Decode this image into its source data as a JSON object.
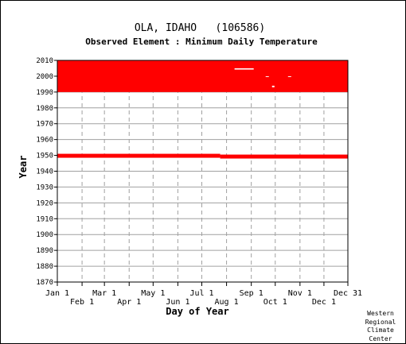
{
  "chart_data": {
    "type": "heatmap",
    "title": "OLA, IDAHO   (106586)",
    "subtitle": "Observed Element : Minimum Daily Temperature",
    "xlabel": "Day of Year",
    "ylabel": "Year",
    "xlim": [
      1,
      365
    ],
    "ylim": [
      1870,
      2010
    ],
    "y_ticks": [
      "2010",
      "2000",
      "1990",
      "1980",
      "1970",
      "1960",
      "1950",
      "1940",
      "1930",
      "1920",
      "1910",
      "1900",
      "1890",
      "1880",
      "1870"
    ],
    "x_ticks_top": [
      {
        "label": "Jan 1",
        "day": 1
      },
      {
        "label": "Mar 1",
        "day": 60
      },
      {
        "label": "May 1",
        "day": 121
      },
      {
        "label": "Jul 1",
        "day": 182
      },
      {
        "label": "Sep 1",
        "day": 244
      },
      {
        "label": "Nov 1",
        "day": 305
      },
      {
        "label": "Dec 31",
        "day": 365
      }
    ],
    "x_ticks_bottom": [
      {
        "label": "Feb 1",
        "day": 32
      },
      {
        "label": "Apr 1",
        "day": 91
      },
      {
        "label": "Jun 1",
        "day": 152
      },
      {
        "label": "Aug 1",
        "day": 213
      },
      {
        "label": "Oct 1",
        "day": 274
      },
      {
        "label": "Dec 1",
        "day": 335
      }
    ],
    "grid": true,
    "data_color": "#ff0000",
    "observed_periods": [
      {
        "start_year": 1990,
        "end_year": 2010,
        "start_day": 1,
        "end_day": 365
      },
      {
        "start_year": 1948.5,
        "end_year": 1951,
        "start_day": 1,
        "end_day": 205
      },
      {
        "start_year": 1948,
        "end_year": 1950.5,
        "start_day": 205,
        "end_day": 365
      }
    ],
    "missing": [
      {
        "start_year": 2004.2,
        "end_year": 2005,
        "start_day": 223,
        "end_day": 247
      },
      {
        "start_year": 1999.5,
        "end_year": 2000,
        "start_day": 262,
        "end_day": 266
      },
      {
        "start_year": 1999.5,
        "end_year": 2000,
        "start_day": 290,
        "end_day": 294
      },
      {
        "start_year": 1993,
        "end_year": 1994,
        "start_day": 270,
        "end_day": 273
      }
    ]
  },
  "credit": [
    "Western",
    "Regional",
    "Climate",
    "Center"
  ]
}
